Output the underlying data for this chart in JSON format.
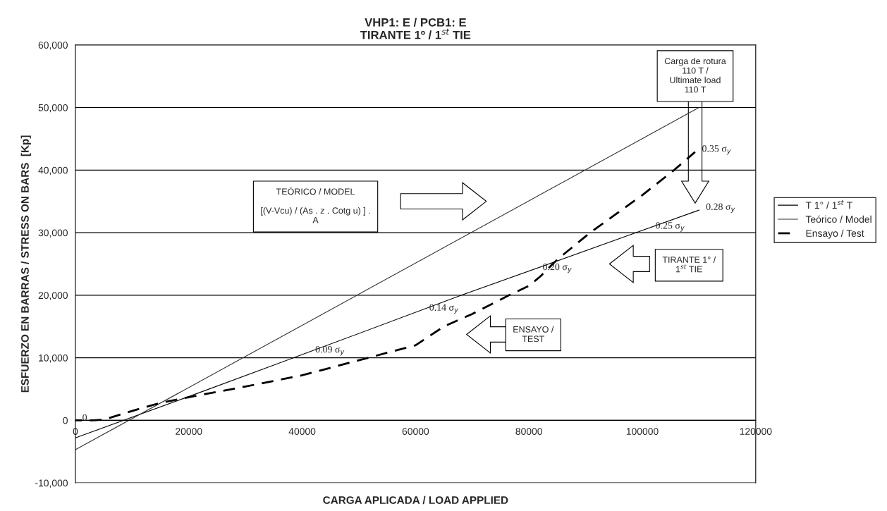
{
  "chart_data": {
    "type": "line",
    "title": "VHP1: E / PCB1: E\nTIRANTE 1º / 1$^{st}$ TIE",
    "xlabel": "CARGA APLICADA / LOAD APPLIED",
    "ylabel": "ESFUERZO EN BARRAS / STRESS ON BARS  [Kp]",
    "series": [
      {
        "name": "T 1° / 1$^{st}$ T",
        "color": "#000000",
        "line_style": "solid",
        "x": [
          0,
          20000,
          38500,
          68100,
          98900,
          110000
        ],
        "values": [
          -2800,
          3800,
          10000,
          20000,
          30000,
          33600
        ]
      },
      {
        "name": "Teórico / Model",
        "color": "#333333",
        "line_style": "solid",
        "x": [
          0,
          110000
        ],
        "values": [
          -4700,
          50000
        ]
      },
      {
        "name": "Ensayo / Test",
        "color": "#000000",
        "line_style": "dashed",
        "x": [
          0,
          3000,
          5000,
          10000,
          15000,
          20000,
          30000,
          40000,
          50000,
          60000,
          65000,
          70000,
          76500,
          80000,
          82000,
          85000,
          90800,
          100000,
          105600,
          109300
        ],
        "values": [
          0,
          0,
          100,
          1500,
          2800,
          3700,
          5400,
          7200,
          9600,
          12000,
          15000,
          17000,
          20000,
          21500,
          23000,
          25700,
          30000,
          36000,
          40000,
          42900
        ]
      }
    ],
    "xlim": [
      0,
      120000
    ],
    "xticks": [
      0,
      20000,
      40000,
      60000,
      80000,
      100000,
      120000
    ],
    "ylim": [
      -10000,
      60000
    ],
    "yticks": [
      {
        "value": -10000,
        "label": "-10,000"
      },
      0,
      {
        "value": 10000,
        "label": "10,000"
      },
      {
        "value": 20000,
        "label": "20,000"
      },
      {
        "value": 30000,
        "label": "30,000"
      },
      {
        "value": 40000,
        "label": "40,000"
      },
      {
        "value": 50000,
        "label": "50,000"
      },
      {
        "value": 60000,
        "label": "60,000"
      }
    ],
    "grid": "y",
    "legend": "right",
    "marker": "none",
    "annotations": [
      {
        "text": "0",
        "x": 0,
        "y": 0
      },
      {
        "text": "0.09 σ$_{y}$",
        "x": 41100,
        "y": 10800
      },
      {
        "text": "0.14 σ$_{y}$",
        "x": 61200,
        "y": 17500
      },
      {
        "text": "0.20 σ$_{y}$",
        "x": 81200,
        "y": 24000
      },
      {
        "text": "0.25 σ$_{y}$",
        "x": 101100,
        "y": 30600
      },
      {
        "text": "0.28 σ$_{y}$",
        "x": 110000,
        "y": 33600
      },
      {
        "text": "0.35 σ$_{y}$",
        "x": 109300,
        "y": 42900
      },
      "TEÓRICO / MODEL\n\n[(V-Vcu) / (As . z . Cotg u) ] .\nA",
      "Carga de rotura\n110 T /\nUltimate load\n110 T",
      "TIRANTE 1° /\n1$^{st}$ TIE",
      "ENSAYO /\nTEST"
    ]
  }
}
